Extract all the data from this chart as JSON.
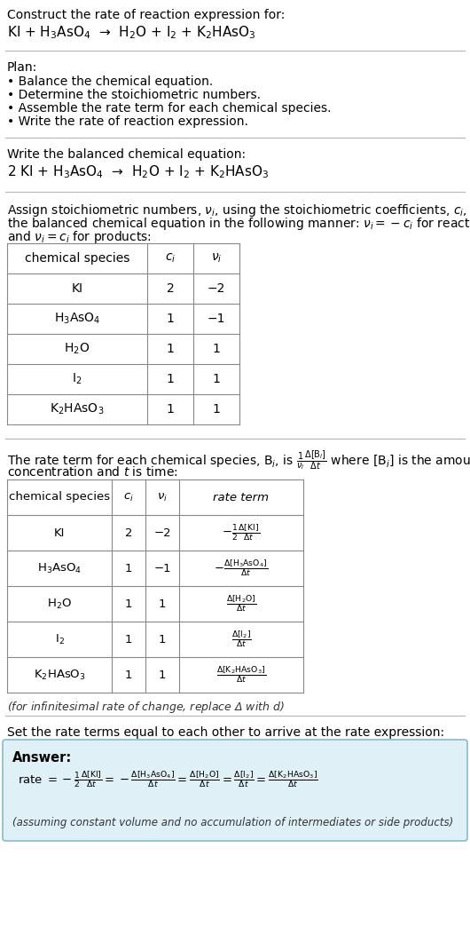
{
  "title_line1": "Construct the rate of reaction expression for:",
  "reaction_unbalanced": "KI + H$_3$AsO$_4$  →  H$_2$O + I$_2$ + K$_2$HAsO$_3$",
  "plan_header": "Plan:",
  "plan_items": [
    "• Balance the chemical equation.",
    "• Determine the stoichiometric numbers.",
    "• Assemble the rate term for each chemical species.",
    "• Write the rate of reaction expression."
  ],
  "balanced_header": "Write the balanced chemical equation:",
  "reaction_balanced": "2 KI + H$_3$AsO$_4$  →  H$_2$O + I$_2$ + K$_2$HAsO$_3$",
  "stoich_text1": "Assign stoichiometric numbers, $\\nu_i$, using the stoichiometric coefficients, $c_i$, from",
  "stoich_text2": "the balanced chemical equation in the following manner: $\\nu_i = -c_i$ for reactants",
  "stoich_text3": "and $\\nu_i = c_i$ for products:",
  "table1_headers": [
    "chemical species",
    "$c_i$",
    "$\\nu_i$"
  ],
  "table1_data": [
    [
      "KI",
      "2",
      "−2"
    ],
    [
      "H$_3$AsO$_4$",
      "1",
      "−1"
    ],
    [
      "H$_2$O",
      "1",
      "1"
    ],
    [
      "I$_2$",
      "1",
      "1"
    ],
    [
      "K$_2$HAsO$_3$",
      "1",
      "1"
    ]
  ],
  "rate_text1": "The rate term for each chemical species, B$_i$, is $\\frac{1}{\\nu_i}\\frac{\\Delta[{\\rm B}_i]}{\\Delta t}$ where [B$_i$] is the amount",
  "rate_text2": "concentration and $t$ is time:",
  "table2_headers": [
    "chemical species",
    "$c_i$",
    "$\\nu_i$",
    "rate term"
  ],
  "table2_data": [
    [
      "KI",
      "2",
      "−2",
      "$-\\frac{1}{2}\\frac{\\Delta[{\\rm KI}]}{\\Delta t}$"
    ],
    [
      "H$_3$AsO$_4$",
      "1",
      "−1",
      "$-\\frac{\\Delta[{\\rm H_3AsO_4}]}{\\Delta t}$"
    ],
    [
      "H$_2$O",
      "1",
      "1",
      "$\\frac{\\Delta[{\\rm H_2O}]}{\\Delta t}$"
    ],
    [
      "I$_2$",
      "1",
      "1",
      "$\\frac{\\Delta[{\\rm I_2}]}{\\Delta t}$"
    ],
    [
      "K$_2$HAsO$_3$",
      "1",
      "1",
      "$\\frac{\\Delta[{\\rm K_2HAsO_3}]}{\\Delta t}$"
    ]
  ],
  "infinitesimal_note": "(for infinitesimal rate of change, replace Δ with $d$)",
  "set_equal_text": "Set the rate terms equal to each other to arrive at the rate expression:",
  "answer_box_bg": "#dff0f7",
  "answer_label": "Answer:",
  "answer_eq": "rate $= -\\frac{1}{2}\\frac{\\Delta[{\\rm KI}]}{\\Delta t} = -\\frac{\\Delta[{\\rm H_3AsO_4}]}{\\Delta t} = \\frac{\\Delta[{\\rm H_2O}]}{\\Delta t} = \\frac{\\Delta[{\\rm I_2}]}{\\Delta t} = \\frac{\\Delta[{\\rm K_2HAsO_3}]}{\\Delta t}$",
  "answer_note": "(assuming constant volume and no accumulation of intermediates or side products)",
  "bg_color": "#ffffff",
  "text_color": "#000000",
  "line_color": "#bbbbbb"
}
